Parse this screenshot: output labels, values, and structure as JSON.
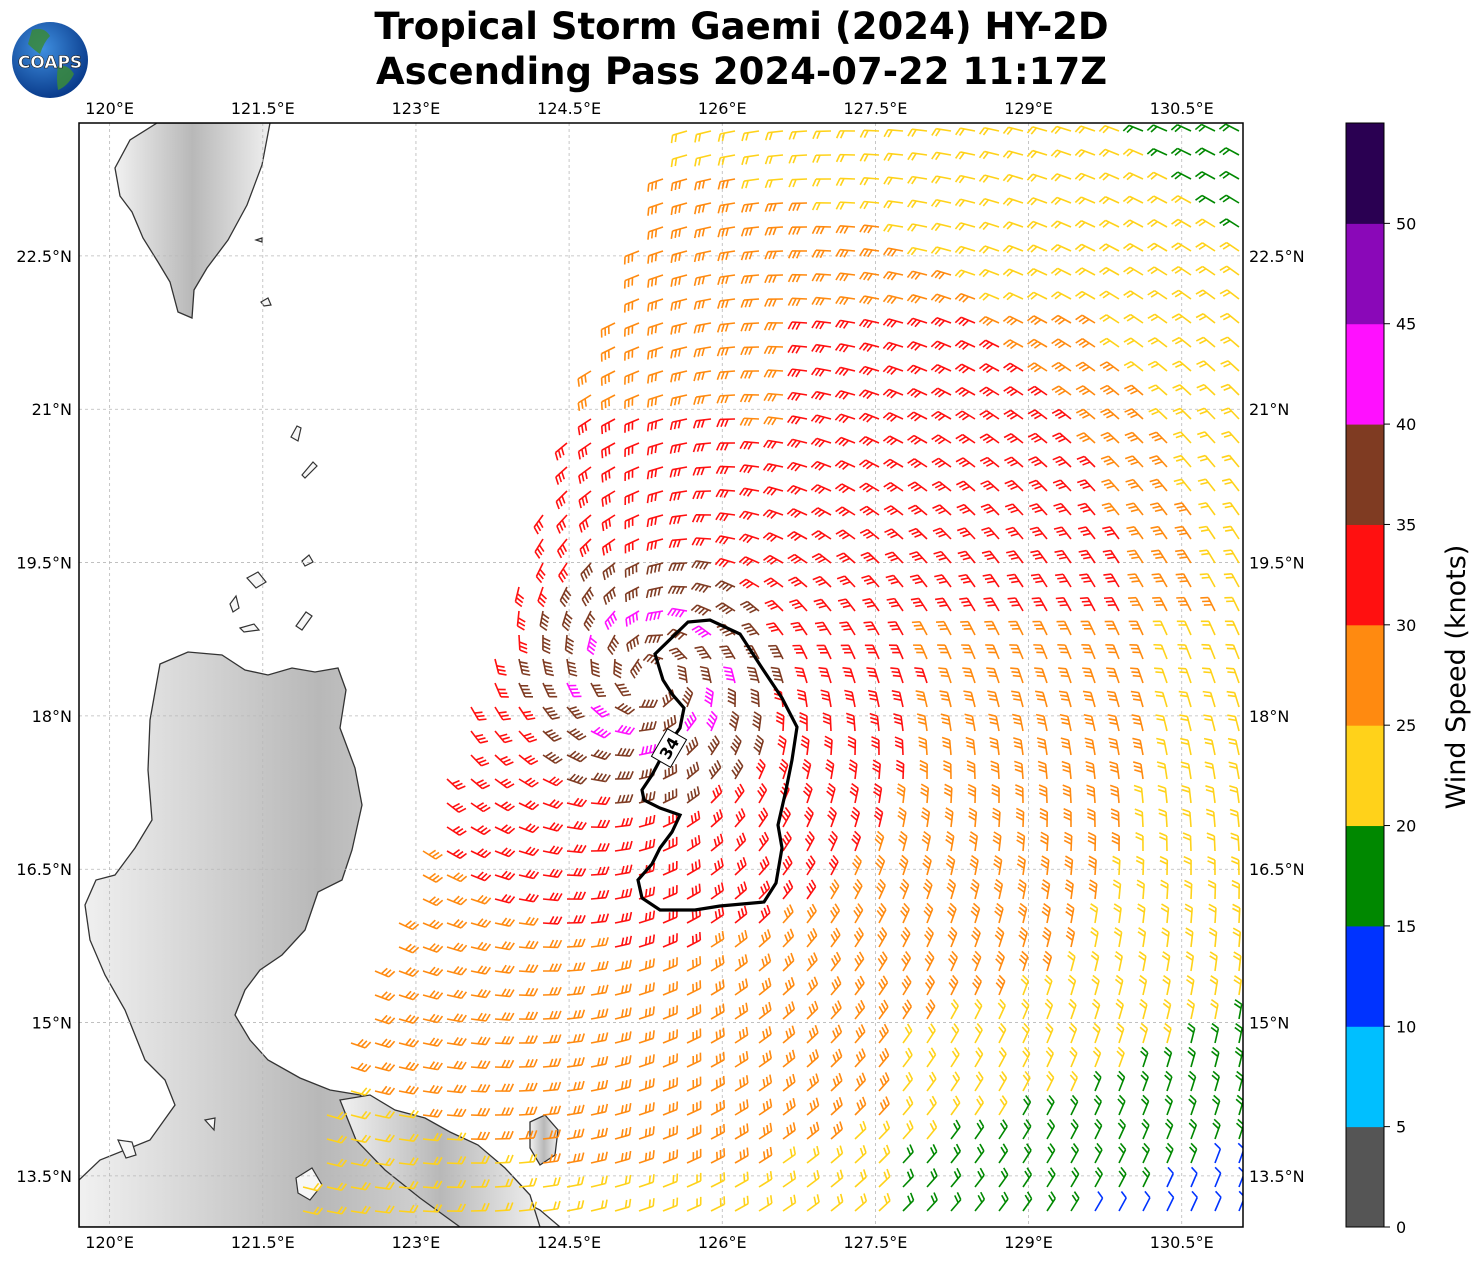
{
  "title": {
    "line1": "Tropical Storm Gaemi (2024) HY-2D",
    "line2": "Ascending Pass 2024-07-22 11:17Z"
  },
  "logo": {
    "text": "COAPS",
    "icon": "globe-logo-icon"
  },
  "map": {
    "lon_range": [
      119.7,
      131.1
    ],
    "lat_range": [
      13.0,
      23.8
    ],
    "lon_ticks": [
      120,
      121.5,
      123,
      124.5,
      126,
      127.5,
      129,
      130.5
    ],
    "lon_labels": [
      "120°E",
      "121.5°E",
      "123°E",
      "124.5°E",
      "126°E",
      "127.5°E",
      "129°E",
      "130.5°E"
    ],
    "lat_ticks": [
      13.5,
      15,
      16.5,
      18,
      19.5,
      21,
      22.5
    ],
    "lat_labels": [
      "13.5°N",
      "15°N",
      "16.5°N",
      "18°N",
      "19.5°N",
      "21°N",
      "22.5°N"
    ],
    "gridlines": true,
    "storm_center": {
      "lon": 125.3,
      "lat": 18.4
    },
    "contour_label": "34"
  },
  "colorbar": {
    "label": "Wind Speed (knots)",
    "ticks": [
      "0",
      "5",
      "10",
      "15",
      "20",
      "25",
      "30",
      "35",
      "40",
      "45",
      "50"
    ],
    "colors": [
      "#555555",
      "#00bfff",
      "#0033ff",
      "#008800",
      "#ffd21a",
      "#ff8a10",
      "#ff1010",
      "#7f3b22",
      "#ff10ff",
      "#8a08b8",
      "#2a0052"
    ]
  }
}
